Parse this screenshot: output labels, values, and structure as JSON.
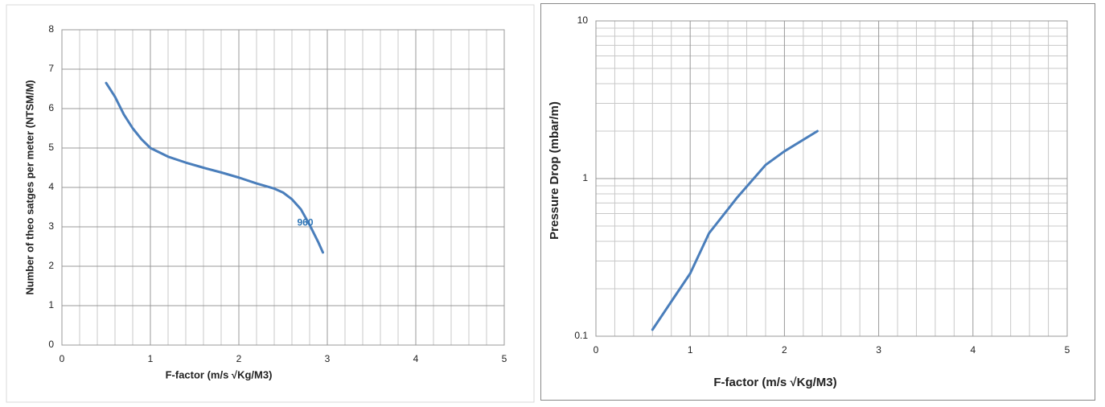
{
  "chart_data": [
    {
      "type": "line",
      "x_label": "F-factor (m/s √Kg/M3)",
      "y_label": "Number of theo satges per meter  (NTSM/M)",
      "x": [
        0.5,
        0.6,
        0.7,
        0.8,
        0.9,
        1.0,
        1.2,
        1.4,
        1.6,
        1.8,
        2.0,
        2.2,
        2.4,
        2.5,
        2.6,
        2.7,
        2.8,
        2.9,
        2.95
      ],
      "values": [
        6.65,
        6.3,
        5.85,
        5.5,
        5.22,
        5.0,
        4.78,
        4.63,
        4.5,
        4.38,
        4.25,
        4.1,
        3.97,
        3.87,
        3.7,
        3.45,
        3.05,
        2.6,
        2.35
      ],
      "color": "#4a7ebb",
      "xlim": [
        0,
        5
      ],
      "xticks": [
        0,
        1,
        2,
        3,
        4,
        5
      ],
      "ylim": [
        0,
        8
      ],
      "yticks": [
        0,
        1,
        2,
        3,
        4,
        5,
        6,
        7,
        8
      ],
      "grid": true,
      "annotations": [
        {
          "text": "960",
          "x": 2.75,
          "y": 3.1,
          "color": "#2e75b6"
        }
      ]
    },
    {
      "type": "line",
      "x_label": "F-factor (m/s √Kg/M3)",
      "y_label": "Pressure Drop (mbar/m)",
      "x": [
        0.6,
        0.8,
        1.0,
        1.2,
        1.5,
        1.8,
        2.0,
        2.35
      ],
      "values": [
        0.11,
        0.166,
        0.25,
        0.45,
        0.76,
        1.22,
        1.49,
        2.0
      ],
      "color": "#4a7ebb",
      "xlim": [
        0,
        5
      ],
      "xticks": [
        0,
        1,
        2,
        3,
        4,
        5
      ],
      "ylim": [
        0.1,
        10
      ],
      "yticks": [
        0.1,
        1,
        10
      ],
      "log_y": true,
      "grid": true
    }
  ]
}
